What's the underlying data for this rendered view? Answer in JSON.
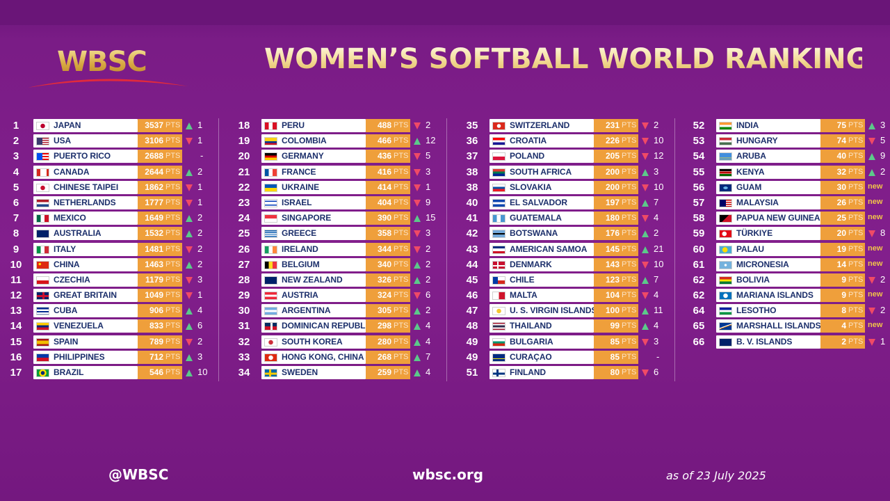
{
  "header": {
    "logo_text": "WBSC",
    "title": "WOMEN’S SOFTBALL WORLD RANKING"
  },
  "points_unit": "PTS",
  "columns": [
    [
      {
        "rank": "1",
        "country": "JAPAN",
        "points": "3537",
        "move": "up",
        "change": "1",
        "flag": "jp"
      },
      {
        "rank": "2",
        "country": "USA",
        "points": "3106",
        "move": "down",
        "change": "1",
        "flag": "us"
      },
      {
        "rank": "3",
        "country": "PUERTO RICO",
        "points": "2688",
        "move": "same",
        "change": "-",
        "flag": "pr"
      },
      {
        "rank": "4",
        "country": "CANADA",
        "points": "2644",
        "move": "up",
        "change": "2",
        "flag": "ca"
      },
      {
        "rank": "5",
        "country": "CHINESE TAIPEI",
        "points": "1862",
        "move": "down",
        "change": "1",
        "flag": "tpe"
      },
      {
        "rank": "6",
        "country": "NETHERLANDS",
        "points": "1777",
        "move": "down",
        "change": "1",
        "flag": "nl"
      },
      {
        "rank": "7",
        "country": "MEXICO",
        "points": "1649",
        "move": "up",
        "change": "2",
        "flag": "mx"
      },
      {
        "rank": "8",
        "country": "AUSTRALIA",
        "points": "1532",
        "move": "up",
        "change": "2",
        "flag": "au"
      },
      {
        "rank": "9",
        "country": "ITALY",
        "points": "1481",
        "move": "down",
        "change": "2",
        "flag": "it"
      },
      {
        "rank": "10",
        "country": "CHINA",
        "points": "1463",
        "move": "up",
        "change": "2",
        "flag": "cn"
      },
      {
        "rank": "11",
        "country": "CZECHIA",
        "points": "1179",
        "move": "down",
        "change": "3",
        "flag": "cz"
      },
      {
        "rank": "12",
        "country": "GREAT BRITAIN",
        "points": "1049",
        "move": "down",
        "change": "1",
        "flag": "gb"
      },
      {
        "rank": "13",
        "country": "CUBA",
        "points": "906",
        "move": "up",
        "change": "4",
        "flag": "cu"
      },
      {
        "rank": "14",
        "country": "VENEZUELA",
        "points": "833",
        "move": "up",
        "change": "6",
        "flag": "ve"
      },
      {
        "rank": "15",
        "country": "SPAIN",
        "points": "789",
        "move": "down",
        "change": "2",
        "flag": "es"
      },
      {
        "rank": "16",
        "country": "PHILIPPINES",
        "points": "712",
        "move": "up",
        "change": "3",
        "flag": "ph"
      },
      {
        "rank": "17",
        "country": "BRAZIL",
        "points": "546",
        "move": "up",
        "change": "10",
        "flag": "br"
      }
    ],
    [
      {
        "rank": "18",
        "country": "PERU",
        "points": "488",
        "move": "down",
        "change": "2",
        "flag": "pe"
      },
      {
        "rank": "19",
        "country": "COLOMBIA",
        "points": "466",
        "move": "up",
        "change": "12",
        "flag": "co"
      },
      {
        "rank": "20",
        "country": "GERMANY",
        "points": "436",
        "move": "down",
        "change": "5",
        "flag": "de"
      },
      {
        "rank": "21",
        "country": "FRANCE",
        "points": "416",
        "move": "down",
        "change": "3",
        "flag": "fr"
      },
      {
        "rank": "22",
        "country": "UKRAINE",
        "points": "414",
        "move": "down",
        "change": "1",
        "flag": "ua"
      },
      {
        "rank": "23",
        "country": "ISRAEL",
        "points": "404",
        "move": "down",
        "change": "9",
        "flag": "il"
      },
      {
        "rank": "24",
        "country": "SINGAPORE",
        "points": "390",
        "move": "up",
        "change": "15",
        "flag": "sg"
      },
      {
        "rank": "25",
        "country": "GREECE",
        "points": "358",
        "move": "down",
        "change": "3",
        "flag": "gr"
      },
      {
        "rank": "26",
        "country": "IRELAND",
        "points": "344",
        "move": "down",
        "change": "2",
        "flag": "ie"
      },
      {
        "rank": "27",
        "country": "BELGIUM",
        "points": "340",
        "move": "up",
        "change": "2",
        "flag": "be"
      },
      {
        "rank": "28",
        "country": "NEW ZEALAND",
        "points": "326",
        "move": "up",
        "change": "2",
        "flag": "nz"
      },
      {
        "rank": "29",
        "country": "AUSTRIA",
        "points": "324",
        "move": "down",
        "change": "6",
        "flag": "at"
      },
      {
        "rank": "30",
        "country": "ARGENTINA",
        "points": "305",
        "move": "up",
        "change": "2",
        "flag": "ar"
      },
      {
        "rank": "31",
        "country": "DOMINICAN REPUBLIC",
        "points": "298",
        "move": "up",
        "change": "4",
        "flag": "do"
      },
      {
        "rank": "32",
        "country": "SOUTH KOREA",
        "points": "280",
        "move": "up",
        "change": "4",
        "flag": "kr"
      },
      {
        "rank": "33",
        "country": "HONG KONG, CHINA",
        "points": "268",
        "move": "up",
        "change": "7",
        "flag": "hk"
      },
      {
        "rank": "34",
        "country": "SWEDEN",
        "points": "259",
        "move": "up",
        "change": "4",
        "flag": "se"
      }
    ],
    [
      {
        "rank": "35",
        "country": "SWITZERLAND",
        "points": "231",
        "move": "down",
        "change": "2",
        "flag": "ch"
      },
      {
        "rank": "36",
        "country": "CROATIA",
        "points": "226",
        "move": "down",
        "change": "10",
        "flag": "hr"
      },
      {
        "rank": "37",
        "country": "POLAND",
        "points": "205",
        "move": "down",
        "change": "12",
        "flag": "pl"
      },
      {
        "rank": "38",
        "country": "SOUTH AFRICA",
        "points": "200",
        "move": "up",
        "change": "3",
        "flag": "za"
      },
      {
        "rank": "38",
        "country": "SLOVAKIA",
        "points": "200",
        "move": "down",
        "change": "10",
        "flag": "sk"
      },
      {
        "rank": "40",
        "country": "EL SALVADOR",
        "points": "197",
        "move": "up",
        "change": "7",
        "flag": "sv"
      },
      {
        "rank": "41",
        "country": "GUATEMALA",
        "points": "180",
        "move": "down",
        "change": "4",
        "flag": "gt"
      },
      {
        "rank": "42",
        "country": "BOTSWANA",
        "points": "176",
        "move": "up",
        "change": "2",
        "flag": "bw"
      },
      {
        "rank": "43",
        "country": "AMERICAN SAMOA",
        "points": "145",
        "move": "up",
        "change": "21",
        "flag": "as"
      },
      {
        "rank": "44",
        "country": "DENMARK",
        "points": "143",
        "move": "down",
        "change": "10",
        "flag": "dk"
      },
      {
        "rank": "45",
        "country": "CHILE",
        "points": "123",
        "move": "up",
        "change": "7",
        "flag": "cl"
      },
      {
        "rank": "46",
        "country": "MALTA",
        "points": "104",
        "move": "down",
        "change": "4",
        "flag": "mt"
      },
      {
        "rank": "47",
        "country": "U. S. VIRGIN ISLANDS",
        "points": "100",
        "move": "up",
        "change": "11",
        "flag": "vi"
      },
      {
        "rank": "48",
        "country": "THAILAND",
        "points": "99",
        "move": "up",
        "change": "4",
        "flag": "th"
      },
      {
        "rank": "49",
        "country": "BULGARIA",
        "points": "85",
        "move": "down",
        "change": "3",
        "flag": "bg"
      },
      {
        "rank": "49",
        "country": "CURAÇAO",
        "points": "85",
        "move": "same",
        "change": "-",
        "flag": "cw"
      },
      {
        "rank": "51",
        "country": "FINLAND",
        "points": "80",
        "move": "down",
        "change": "6",
        "flag": "fi"
      }
    ],
    [
      {
        "rank": "52",
        "country": "INDIA",
        "points": "75",
        "move": "up",
        "change": "3",
        "flag": "in"
      },
      {
        "rank": "53",
        "country": "HUNGARY",
        "points": "74",
        "move": "down",
        "change": "5",
        "flag": "hu"
      },
      {
        "rank": "54",
        "country": "ARUBA",
        "points": "40",
        "move": "up",
        "change": "9",
        "flag": "aw"
      },
      {
        "rank": "55",
        "country": "KENYA",
        "points": "32",
        "move": "up",
        "change": "2",
        "flag": "ke"
      },
      {
        "rank": "56",
        "country": "GUAM",
        "points": "30",
        "move": "new",
        "change": "new",
        "flag": "gu"
      },
      {
        "rank": "57",
        "country": "MALAYSIA",
        "points": "26",
        "move": "new",
        "change": "new",
        "flag": "my"
      },
      {
        "rank": "58",
        "country": "PAPUA NEW GUINEA",
        "points": "25",
        "move": "new",
        "change": "new",
        "flag": "pg"
      },
      {
        "rank": "59",
        "country": "TÜRKIYE",
        "points": "20",
        "move": "down",
        "change": "8",
        "flag": "tr"
      },
      {
        "rank": "60",
        "country": "PALAU",
        "points": "19",
        "move": "new",
        "change": "new",
        "flag": "pw"
      },
      {
        "rank": "61",
        "country": "MICRONESIA",
        "points": "14",
        "move": "new",
        "change": "new",
        "flag": "fm"
      },
      {
        "rank": "62",
        "country": "BOLIVIA",
        "points": "9",
        "move": "down",
        "change": "2",
        "flag": "bo"
      },
      {
        "rank": "62",
        "country": "MARIANA ISLANDS",
        "points": "9",
        "move": "new",
        "change": "new",
        "flag": "mp"
      },
      {
        "rank": "64",
        "country": "LESOTHO",
        "points": "8",
        "move": "down",
        "change": "2",
        "flag": "ls"
      },
      {
        "rank": "65",
        "country": "MARSHALL ISLANDS",
        "points": "4",
        "move": "new",
        "change": "new",
        "flag": "mh"
      },
      {
        "rank": "66",
        "country": "B. V. ISLANDS",
        "points": "2",
        "move": "down",
        "change": "1",
        "flag": "vg"
      }
    ]
  ],
  "footer": {
    "handle": "@WBSC",
    "website": "wbsc.org",
    "as_of": "as of 23 July 2025"
  }
}
